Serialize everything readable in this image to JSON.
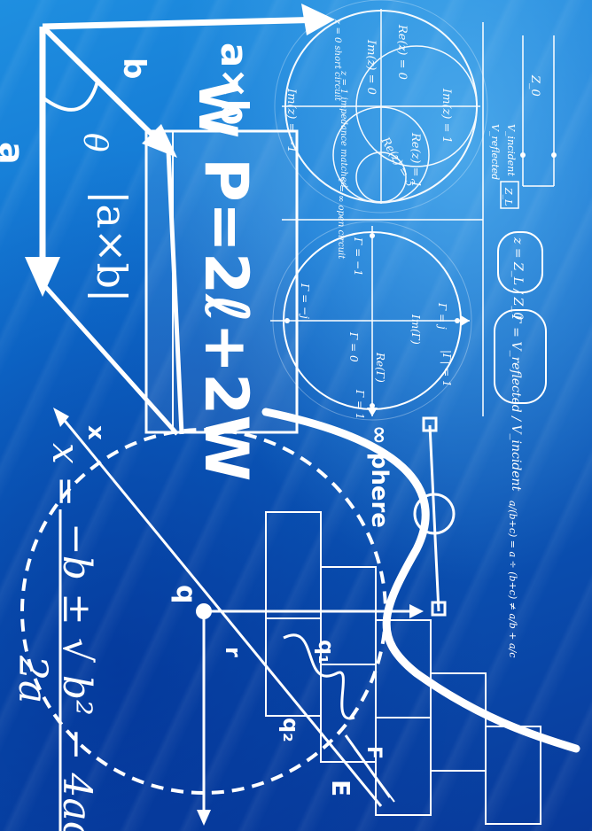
{
  "texts": {
    "formula_P": "P=2ℓ+2W",
    "cross_top": "a×b",
    "cross_W": "W",
    "abs_cross": "|a×b|",
    "b_label": "b",
    "a_label": "a",
    "theta": "θ",
    "quad_x": "x =",
    "quad_rhs": "−b ± √ b² − 4ac",
    "quad_den": "2a",
    "inf_sphere": "∞ phere",
    "ratio": "a/(b+c) = a ÷ (b+c) ≠ a/b + a/c",
    "zL": "z = Z_L / Z_0",
    "gamma": "Γ = V_reflected / V_incident",
    "z0": "Z_0",
    "v_inc": "V_incident",
    "v_ref": "V_reflected",
    "zl_box": "Z_L",
    "smith_re_z0": "Re(z) = 0",
    "smith_im_z0": "Im(z) = 0",
    "smith_im_z1": "Im(z) = 1",
    "smith_im_zm1": "Im(z) = −1",
    "smith_re_z1": "Re(z) = 1",
    "smith_re_z3": "Re(z) = 3",
    "short": "z = 0 short circuit",
    "impedance": "z = 1 impedance matched",
    "open": "z = ∞ open circuit",
    "im_gamma": "Im(Γ)",
    "re_gamma": "Re(Γ)",
    "g_m1": "Γ = −1",
    "g_0": "Γ = 0",
    "g_1": "Γ = 1",
    "g_j": "Γ = j",
    "g_mj": "Γ = −j",
    "g_abs": "|Γ| = 1",
    "x_axis": "x",
    "q": "q",
    "r": "r",
    "d1": "q₁",
    "d2": "q₂",
    "e": "E",
    "f": "F"
  },
  "colors": {
    "bg_light": "#1f8fe0",
    "bg_dark": "#08399a",
    "ink": "#ffffff"
  }
}
